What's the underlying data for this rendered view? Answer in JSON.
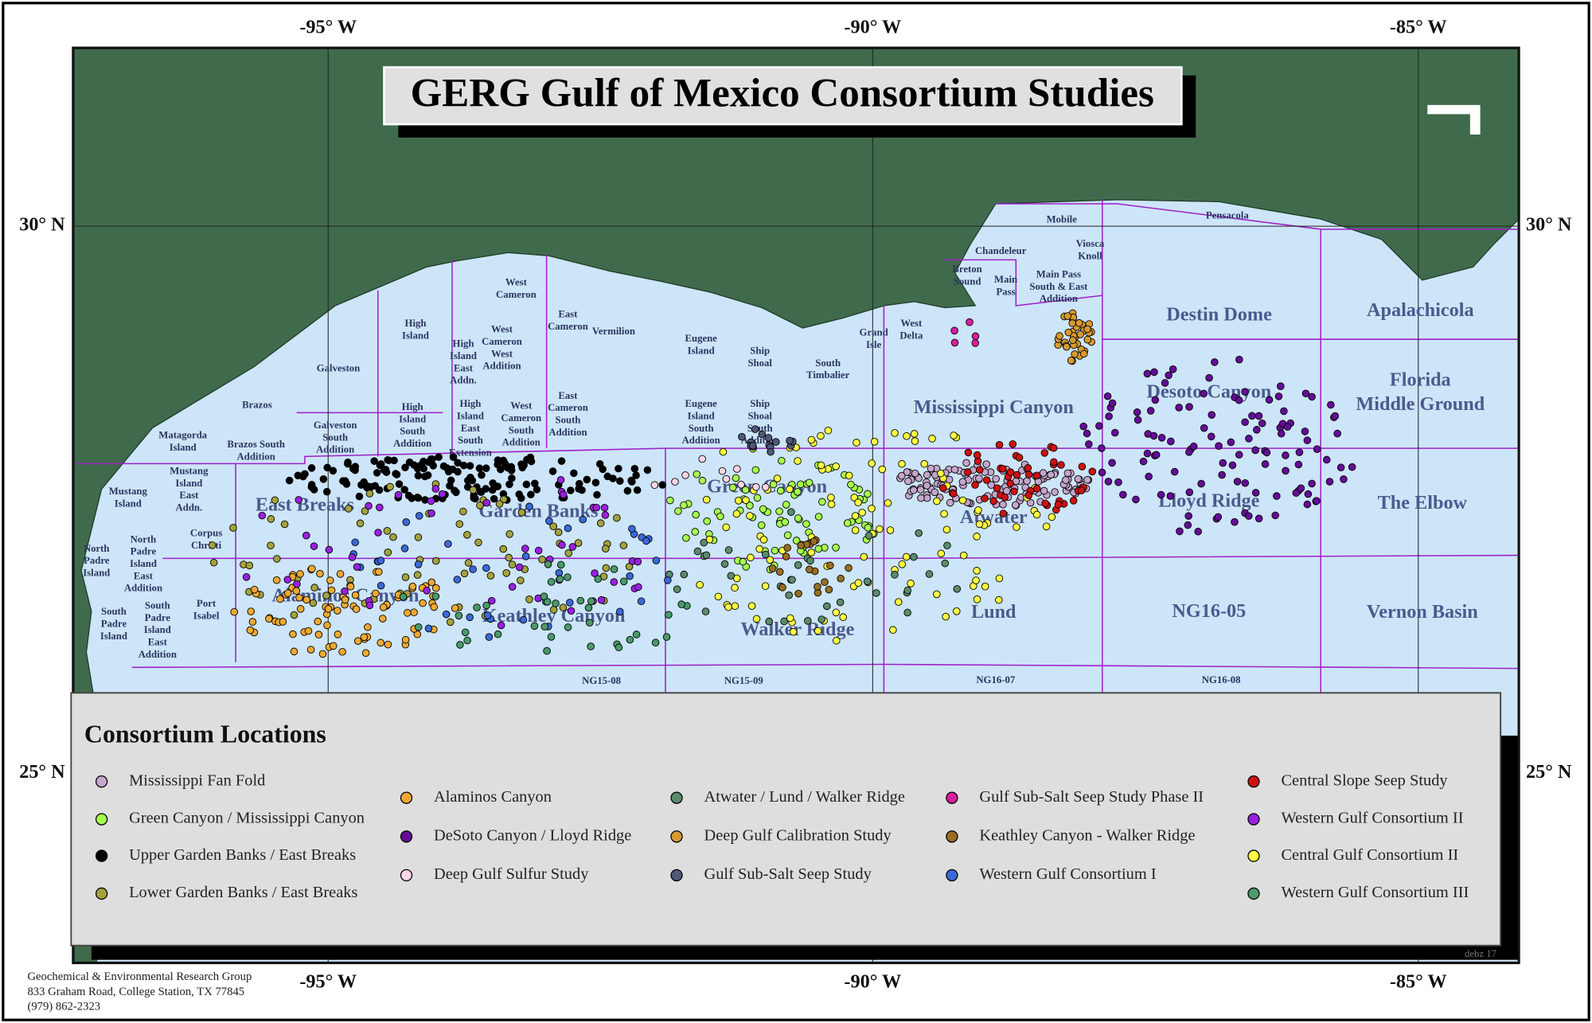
{
  "header": {
    "title": "GERG Gulf of Mexico Consortium Studies"
  },
  "axes": {
    "longitude_top": [
      "-95° W",
      "-90° W",
      "-85° W"
    ],
    "longitude_bottom": [
      "-95° W",
      "-90° W",
      "-85° W"
    ],
    "latitude_left": [
      "30° N",
      "25° N"
    ],
    "latitude_right": [
      "30° N",
      "25° N"
    ]
  },
  "areas": [
    {
      "lines": [
        "Destin Dome"
      ]
    },
    {
      "lines": [
        "Apalachicola"
      ]
    },
    {
      "lines": [
        "Florida",
        "Middle Ground"
      ]
    },
    {
      "lines": [
        "Desoto Canyon"
      ]
    },
    {
      "lines": [
        "Mississippi Canyon"
      ]
    },
    {
      "lines": [
        "Lloyd Ridge"
      ]
    },
    {
      "lines": [
        "The Elbow"
      ]
    },
    {
      "lines": [
        "Green Canyon"
      ]
    },
    {
      "lines": [
        "Garden Banks"
      ]
    },
    {
      "lines": [
        "East Breaks"
      ]
    },
    {
      "lines": [
        "Atwater"
      ]
    },
    {
      "lines": [
        "Lund"
      ]
    },
    {
      "lines": [
        "NG16-05"
      ]
    },
    {
      "lines": [
        "Vernon Basin"
      ]
    },
    {
      "lines": [
        "Walker Ridge"
      ]
    },
    {
      "lines": [
        "Keathley Canyon"
      ]
    },
    {
      "lines": [
        "Alaminos Canyon"
      ]
    },
    {
      "lines": [
        "NG15-08"
      ]
    },
    {
      "lines": [
        "NG15-09"
      ]
    },
    {
      "lines": [
        "NG16-07"
      ]
    },
    {
      "lines": [
        "NG16-08"
      ]
    },
    {
      "lines": [
        "Pensacola"
      ]
    },
    {
      "lines": [
        "Mobile"
      ]
    },
    {
      "lines": [
        "Viosca",
        "Knoll"
      ]
    },
    {
      "lines": [
        "Chandeleur"
      ]
    },
    {
      "lines": [
        "Breton",
        "Sound"
      ]
    },
    {
      "lines": [
        "Main",
        "Pass"
      ]
    },
    {
      "lines": [
        "Main Pass",
        "South & East",
        "Addition"
      ]
    },
    {
      "lines": [
        "Galveston"
      ]
    },
    {
      "lines": [
        "Brazos"
      ]
    },
    {
      "lines": [
        "Matagorda",
        "Island"
      ]
    },
    {
      "lines": [
        "Mustang",
        "Island"
      ]
    },
    {
      "lines": [
        "High",
        "Island"
      ]
    },
    {
      "lines": [
        "High",
        "Island",
        "East",
        "Addn."
      ]
    },
    {
      "lines": [
        "West",
        "Cameron"
      ]
    },
    {
      "lines": [
        "East",
        "Cameron"
      ]
    },
    {
      "lines": [
        "Vermilion"
      ]
    },
    {
      "lines": [
        "Eugene",
        "Island"
      ]
    },
    {
      "lines": [
        "Ship",
        "Shoal"
      ]
    },
    {
      "lines": [
        "South",
        "Timbalier"
      ]
    },
    {
      "lines": [
        "Grand",
        "Isle"
      ]
    },
    {
      "lines": [
        "West",
        "Delta"
      ]
    },
    {
      "lines": [
        "Galveston",
        "South",
        "Addition"
      ]
    },
    {
      "lines": [
        "Brazos South",
        "Addition"
      ]
    },
    {
      "lines": [
        "High",
        "Island",
        "South",
        "Addition"
      ]
    },
    {
      "lines": [
        "West",
        "Cameron",
        "South",
        "Addition"
      ]
    },
    {
      "lines": [
        "Mustang",
        "Island",
        "East",
        "Addn."
      ]
    },
    {
      "lines": [
        "Corpus",
        "Christi"
      ]
    },
    {
      "lines": [
        "North",
        "Padre",
        "Island"
      ]
    },
    {
      "lines": [
        "North",
        "Padre",
        "Island",
        "East",
        "Addition"
      ]
    },
    {
      "lines": [
        "Port",
        "Isabel"
      ]
    },
    {
      "lines": [
        "South",
        "Padre",
        "Island"
      ]
    },
    {
      "lines": [
        "South",
        "Padre",
        "Island",
        "East",
        "Addition"
      ]
    },
    {
      "lines": [
        "High",
        "Island",
        "East",
        "South",
        "Extension"
      ]
    },
    {
      "lines": [
        "West",
        "Cameron",
        "West",
        "Addition"
      ]
    },
    {
      "lines": [
        "East",
        "Cameron",
        "South",
        "Addition"
      ]
    },
    {
      "lines": [
        "Eugene",
        "Island",
        "South",
        "Addition"
      ]
    },
    {
      "lines": [
        "Ship",
        "Shoal",
        "South",
        "Addition"
      ]
    }
  ],
  "legend": {
    "title": "Consortium Locations",
    "items": [
      {
        "label": "Mississippi Fan Fold",
        "color": "#c4a6cc"
      },
      {
        "label": "Green Canyon / Mississippi Canyon",
        "color": "#a6ff4c"
      },
      {
        "label": "Upper Garden Banks / East Breaks",
        "color": "#000000"
      },
      {
        "label": "Lower Garden Banks / East Breaks",
        "color": "#a4a23e"
      },
      {
        "label": "Alaminos Canyon",
        "color": "#f0a832"
      },
      {
        "label": "DeSoto Canyon / Lloyd Ridge",
        "color": "#640c96"
      },
      {
        "label": "Deep Gulf Sulfur Study",
        "color": "#ffd6e6"
      },
      {
        "label": "Atwater / Lund / Walker Ridge",
        "color": "#5a8c6c"
      },
      {
        "label": "Deep Gulf Calibration Study",
        "color": "#d69a30"
      },
      {
        "label": "Gulf Sub-Salt Seep Study",
        "color": "#505878"
      },
      {
        "label": "Gulf Sub-Salt Seep Study Phase II",
        "color": "#d81ea0"
      },
      {
        "label": "Keathley Canyon - Walker Ridge",
        "color": "#9a6e20"
      },
      {
        "label": "Western Gulf Consortium I",
        "color": "#3a6ad8"
      },
      {
        "label": "Central Slope Seep Study",
        "color": "#d01010"
      },
      {
        "label": "Western Gulf Consortium II",
        "color": "#9a20e0"
      },
      {
        "label": "Central Gulf Consortium II",
        "color": "#ffff40"
      },
      {
        "label": "Western Gulf Consortium III",
        "color": "#4a9a6a"
      }
    ]
  },
  "footer": {
    "lines": [
      "Geochemical & Environmental Research Group",
      "833 Graham Road, College Station, TX 77845",
      "(979) 862-2323"
    ]
  },
  "signature": "debz 17"
}
